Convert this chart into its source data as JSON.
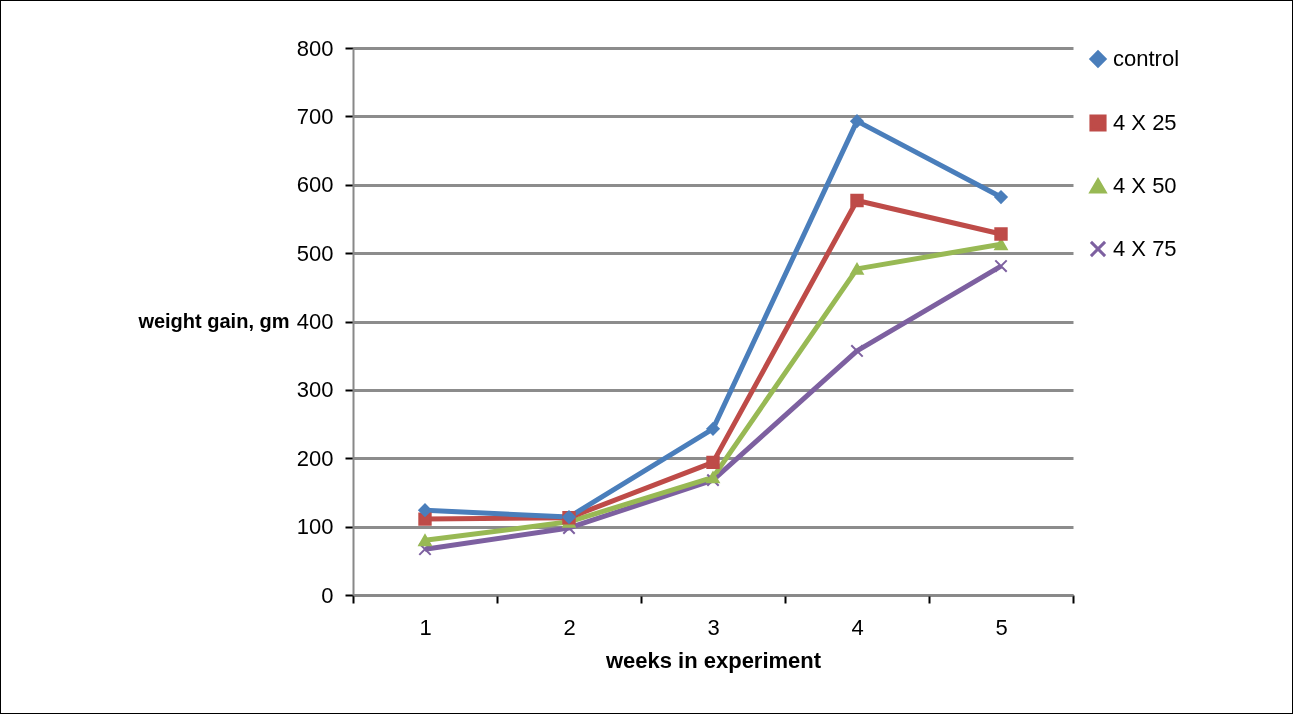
{
  "chart_data": {
    "type": "line",
    "xlabel": "weeks in experiment",
    "ylabel": "weight gain,  gm",
    "categories": [
      "1",
      "2",
      "3",
      "4",
      "5"
    ],
    "series": [
      {
        "name": "control",
        "color": "#4a7ebb",
        "marker": "diamond",
        "values": [
          124,
          114,
          243,
          693,
          582
        ]
      },
      {
        "name": "4 X 25",
        "color": "#be4b48",
        "marker": "square",
        "values": [
          111,
          113,
          194,
          577,
          528
        ]
      },
      {
        "name": "4 X 50",
        "color": "#98b954",
        "marker": "triangle",
        "values": [
          80,
          107,
          172,
          477,
          513
        ]
      },
      {
        "name": "4 X 75",
        "color": "#7d60a0",
        "marker": "cross",
        "values": [
          67,
          98,
          168,
          357,
          481
        ]
      }
    ],
    "ylim": [
      0,
      800
    ],
    "yticks": [
      0,
      100,
      200,
      300,
      400,
      500,
      600,
      700,
      800
    ],
    "grid": "y",
    "legend": "right"
  }
}
